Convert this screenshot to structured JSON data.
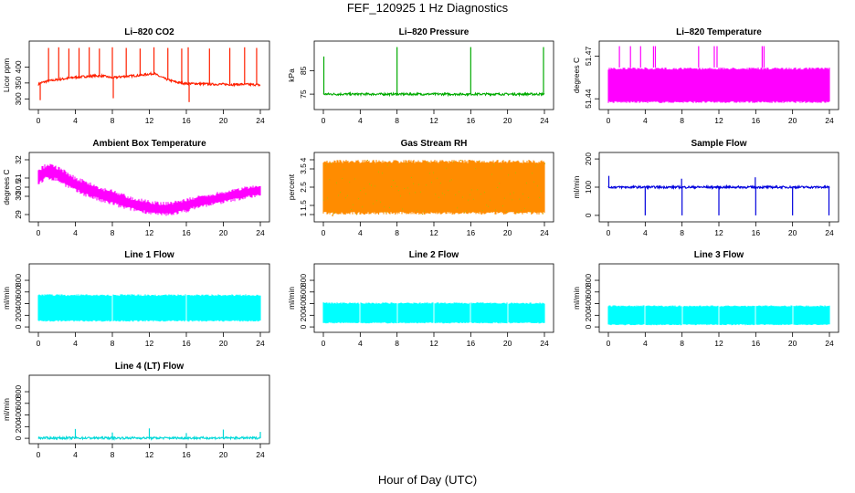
{
  "figure": {
    "title": "FEF_120925  1 Hz Diagnostics",
    "xlabel": "Hour of Day (UTC)"
  },
  "chart_data": [
    {
      "type": "line",
      "title": "Li–820 CO2",
      "ylabel": "Licor ppm",
      "color": "#ff2000",
      "xlim": [
        0,
        24
      ],
      "ylim": [
        278,
        470
      ],
      "xticks": [
        0,
        4,
        8,
        12,
        16,
        20,
        24
      ],
      "yticks": [
        300,
        350,
        400
      ],
      "x": [
        0,
        0.2,
        0.5,
        1,
        1.5,
        2,
        3,
        4,
        5,
        6,
        7,
        8,
        9,
        10,
        11,
        12,
        12.5,
        13,
        14,
        15,
        16,
        17,
        18,
        19,
        20,
        21,
        22,
        23,
        24
      ],
      "y": [
        345,
        350,
        352,
        356,
        358,
        360,
        364,
        368,
        370,
        372,
        372,
        366,
        370,
        372,
        374,
        378,
        380,
        372,
        360,
        352,
        348,
        348,
        347,
        346,
        346,
        345,
        346,
        345,
        344
      ],
      "spikes": [
        {
          "x": 0.2,
          "y": 296
        },
        {
          "x": 1.1,
          "y": 460
        },
        {
          "x": 2.2,
          "y": 462
        },
        {
          "x": 3.3,
          "y": 458
        },
        {
          "x": 4.4,
          "y": 460
        },
        {
          "x": 5.5,
          "y": 462
        },
        {
          "x": 6.6,
          "y": 458
        },
        {
          "x": 8.0,
          "y": 462
        },
        {
          "x": 8.1,
          "y": 302
        },
        {
          "x": 9.5,
          "y": 460
        },
        {
          "x": 11.0,
          "y": 458
        },
        {
          "x": 12.5,
          "y": 462
        },
        {
          "x": 14.0,
          "y": 460
        },
        {
          "x": 15.5,
          "y": 458
        },
        {
          "x": 16.2,
          "y": 462
        },
        {
          "x": 16.3,
          "y": 290
        },
        {
          "x": 18.5,
          "y": 458
        },
        {
          "x": 20.7,
          "y": 460
        },
        {
          "x": 22.3,
          "y": 462
        },
        {
          "x": 23.6,
          "y": 460
        },
        {
          "x": 23.9,
          "y": 340
        }
      ]
    },
    {
      "type": "line",
      "title": "Li–820 Pressure",
      "ylabel": "kPa",
      "color": "#00aa00",
      "xlim": [
        0,
        24
      ],
      "ylim": [
        70,
        96
      ],
      "xticks": [
        0,
        4,
        8,
        12,
        16,
        20,
        24
      ],
      "yticks": [
        75,
        85
      ],
      "x": [
        0,
        1,
        4,
        8,
        12,
        16,
        20,
        24
      ],
      "y": [
        75,
        75,
        75,
        75,
        75,
        75,
        75,
        75
      ],
      "spikes": [
        {
          "x": 0.05,
          "y": 91
        },
        {
          "x": 8.0,
          "y": 95
        },
        {
          "x": 16.0,
          "y": 95
        },
        {
          "x": 23.9,
          "y": 95
        }
      ]
    },
    {
      "type": "area",
      "title": "Li–820 Temperature",
      "ylabel": "degrees C",
      "color": "#ff00ff",
      "xlim": [
        0,
        24
      ],
      "ylim": [
        51.435,
        51.478
      ],
      "xticks": [
        0,
        4,
        8,
        12,
        16,
        20,
        24
      ],
      "yticks": [
        51.44,
        51.47
      ],
      "band": {
        "x0": 0,
        "x1": 24,
        "low": 51.437,
        "high": 51.462
      },
      "spikes": [
        {
          "x": 1.2,
          "y": 51.477
        },
        {
          "x": 2.4,
          "y": 51.477
        },
        {
          "x": 3.5,
          "y": 51.477
        },
        {
          "x": 4.9,
          "y": 51.477
        },
        {
          "x": 5.1,
          "y": 51.477
        },
        {
          "x": 9.8,
          "y": 51.477
        },
        {
          "x": 11.5,
          "y": 51.477
        },
        {
          "x": 11.8,
          "y": 51.477
        },
        {
          "x": 16.7,
          "y": 51.477
        },
        {
          "x": 16.9,
          "y": 51.477
        }
      ]
    },
    {
      "type": "area",
      "title": "Ambient Box Temperature",
      "ylabel": "degrees C",
      "color": "#ff00ff",
      "xlim": [
        0,
        24
      ],
      "ylim": [
        28.8,
        32.2
      ],
      "xticks": [
        0,
        4,
        8,
        12,
        16,
        20,
        24
      ],
      "yticks": [
        29.0,
        30.0,
        30.5,
        31.0,
        32.0
      ],
      "x": [
        0,
        1,
        2,
        3,
        4,
        5,
        6,
        7,
        8,
        9,
        10,
        11,
        12,
        13,
        14,
        15,
        16,
        17,
        18,
        19,
        20,
        21,
        22,
        23,
        24
      ],
      "upper": [
        31.5,
        31.9,
        31.7,
        31.4,
        31.1,
        30.9,
        30.7,
        30.5,
        30.4,
        30.2,
        30.0,
        29.9,
        29.8,
        29.7,
        29.7,
        29.8,
        29.9,
        30.0,
        30.1,
        30.2,
        30.3,
        30.4,
        30.5,
        30.6,
        30.6
      ],
      "lower": [
        30.6,
        30.9,
        30.8,
        30.5,
        30.2,
        30.0,
        29.8,
        29.6,
        29.5,
        29.3,
        29.2,
        29.1,
        29.0,
        28.9,
        28.9,
        29.0,
        29.1,
        29.3,
        29.4,
        29.5,
        29.6,
        29.7,
        29.8,
        29.9,
        30.0
      ]
    },
    {
      "type": "area",
      "title": "Gas Stream RH",
      "ylabel": "percent",
      "color": "#ff8c00",
      "color2": "#b8b800",
      "xlim": [
        0,
        24
      ],
      "ylim": [
        0.8,
        4.2
      ],
      "xticks": [
        0,
        4,
        8,
        12,
        16,
        20,
        24
      ],
      "yticks": [
        1.0,
        1.5,
        2.5,
        3.5,
        4.0
      ],
      "band": {
        "x0": 0,
        "x1": 24,
        "low": 1.0,
        "high": 4.0
      },
      "dips": [
        {
          "x": 1.0,
          "y": 0.9
        },
        {
          "x": 2.4,
          "y": 1.5
        },
        {
          "x": 4.5,
          "y": 1.1
        },
        {
          "x": 6.0,
          "y": 1.4
        },
        {
          "x": 7.8,
          "y": 1.2
        },
        {
          "x": 10.4,
          "y": 1.3
        },
        {
          "x": 11.3,
          "y": 1.0
        },
        {
          "x": 14.0,
          "y": 1.5
        },
        {
          "x": 17.2,
          "y": 1.4
        },
        {
          "x": 19.6,
          "y": 1.2
        },
        {
          "x": 22.6,
          "y": 1.5
        }
      ]
    },
    {
      "type": "line",
      "title": "Sample Flow",
      "ylabel": "ml/min",
      "color": "#0000dd",
      "xlim": [
        0,
        24
      ],
      "ylim": [
        -10,
        210
      ],
      "xticks": [
        0,
        4,
        8,
        12,
        16,
        20,
        24
      ],
      "yticks": [
        0,
        100,
        200
      ],
      "x": [
        0,
        24
      ],
      "y": [
        100,
        100
      ],
      "spikes": [
        {
          "x": 0.05,
          "y": 140
        },
        {
          "x": 4.0,
          "y": 0
        },
        {
          "x": 7.95,
          "y": 130
        },
        {
          "x": 8.0,
          "y": 0
        },
        {
          "x": 12.0,
          "y": 0
        },
        {
          "x": 15.95,
          "y": 135
        },
        {
          "x": 16.0,
          "y": 0
        },
        {
          "x": 20.0,
          "y": 0
        },
        {
          "x": 23.95,
          "y": 0
        }
      ]
    },
    {
      "type": "area",
      "title": "Line 1 Flow",
      "ylabel": "ml/min",
      "color": "#00ffff",
      "xlim": [
        0,
        24
      ],
      "ylim": [
        -30,
        1020
      ],
      "xticks": [
        0,
        4,
        8,
        12,
        16,
        20,
        24
      ],
      "yticks": [
        0,
        200,
        400,
        600,
        800
      ],
      "band": {
        "x0": 0,
        "x1": 24,
        "low": 90,
        "high": 560
      },
      "gaps": [
        4,
        8,
        12,
        16,
        20
      ]
    },
    {
      "type": "area",
      "title": "Line 2 Flow",
      "ylabel": "ml/min",
      "color": "#00ffff",
      "xlim": [
        0,
        24
      ],
      "ylim": [
        -30,
        1020
      ],
      "xticks": [
        0,
        4,
        8,
        12,
        16,
        20,
        24
      ],
      "yticks": [
        0,
        200,
        400,
        600,
        800
      ],
      "band": {
        "x0": 0,
        "x1": 24,
        "low": 60,
        "high": 420
      },
      "gaps": [
        4,
        8,
        12,
        16,
        20
      ]
    },
    {
      "type": "area",
      "title": "Line 3 Flow",
      "ylabel": "ml/min",
      "color": "#00ffff",
      "xlim": [
        0,
        24
      ],
      "ylim": [
        -30,
        1020
      ],
      "xticks": [
        0,
        4,
        8,
        12,
        16,
        20,
        24
      ],
      "yticks": [
        0,
        200,
        400,
        600,
        800
      ],
      "band": {
        "x0": 0,
        "x1": 24,
        "low": 30,
        "high": 370
      },
      "gaps": [
        4,
        8,
        12,
        16,
        20
      ]
    },
    {
      "type": "line",
      "title": "Line 4 (LT) Flow",
      "ylabel": "ml/min",
      "color": "#00d8d8",
      "xlim": [
        0,
        24
      ],
      "ylim": [
        -30,
        1020
      ],
      "xticks": [
        0,
        4,
        8,
        12,
        16,
        20,
        24
      ],
      "yticks": [
        0,
        200,
        400,
        600,
        800
      ],
      "x": [
        0,
        24
      ],
      "y": [
        5,
        5
      ],
      "spikes": [
        {
          "x": 4.0,
          "y": 160
        },
        {
          "x": 8.0,
          "y": 100
        },
        {
          "x": 12.0,
          "y": 170
        },
        {
          "x": 16.0,
          "y": 90
        },
        {
          "x": 20.0,
          "y": 150
        },
        {
          "x": 24.0,
          "y": 110
        }
      ]
    }
  ]
}
